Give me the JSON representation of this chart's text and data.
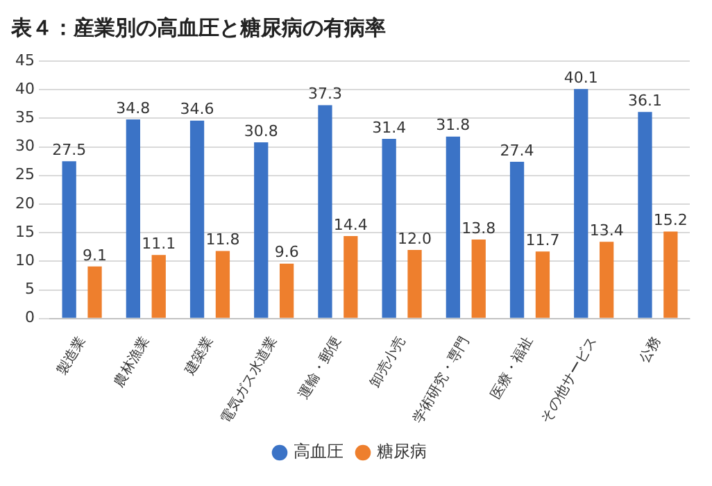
{
  "chart_data": {
    "type": "bar",
    "title": "表４：産業別の高血圧と糖尿病の有病率",
    "categories": [
      "製造業",
      "農林漁業",
      "建築業",
      "電気ガス水道業",
      "運輸・郵便",
      "卸売小売",
      "学術研究・専門",
      "医療・福祉",
      "その他サービス",
      "公務"
    ],
    "series": [
      {
        "name": "高血圧",
        "color": "#3b73c6",
        "values": [
          27.5,
          34.8,
          34.6,
          30.8,
          37.3,
          31.4,
          31.8,
          27.4,
          40.1,
          36.1
        ],
        "value_labels": [
          "27.5",
          "34.8",
          "34.6",
          "30.8",
          "37.3",
          "31.4",
          "31.8",
          "27.4",
          "40.1",
          "36.1"
        ]
      },
      {
        "name": "糖尿病",
        "color": "#ee7f2d",
        "values": [
          9.1,
          11.1,
          11.8,
          9.6,
          14.4,
          12.0,
          13.8,
          11.7,
          13.4,
          15.2
        ],
        "value_labels": [
          "9.1",
          "11.1",
          "11.8",
          "9.6",
          "14.4",
          "12.0",
          "13.8",
          "11.7",
          "13.4",
          "15.2"
        ]
      }
    ],
    "ylim": [
      0,
      45
    ],
    "yticks": [
      0,
      5,
      10,
      15,
      20,
      25,
      30,
      35,
      40,
      45
    ],
    "grid": "y",
    "legend": "bottom"
  }
}
